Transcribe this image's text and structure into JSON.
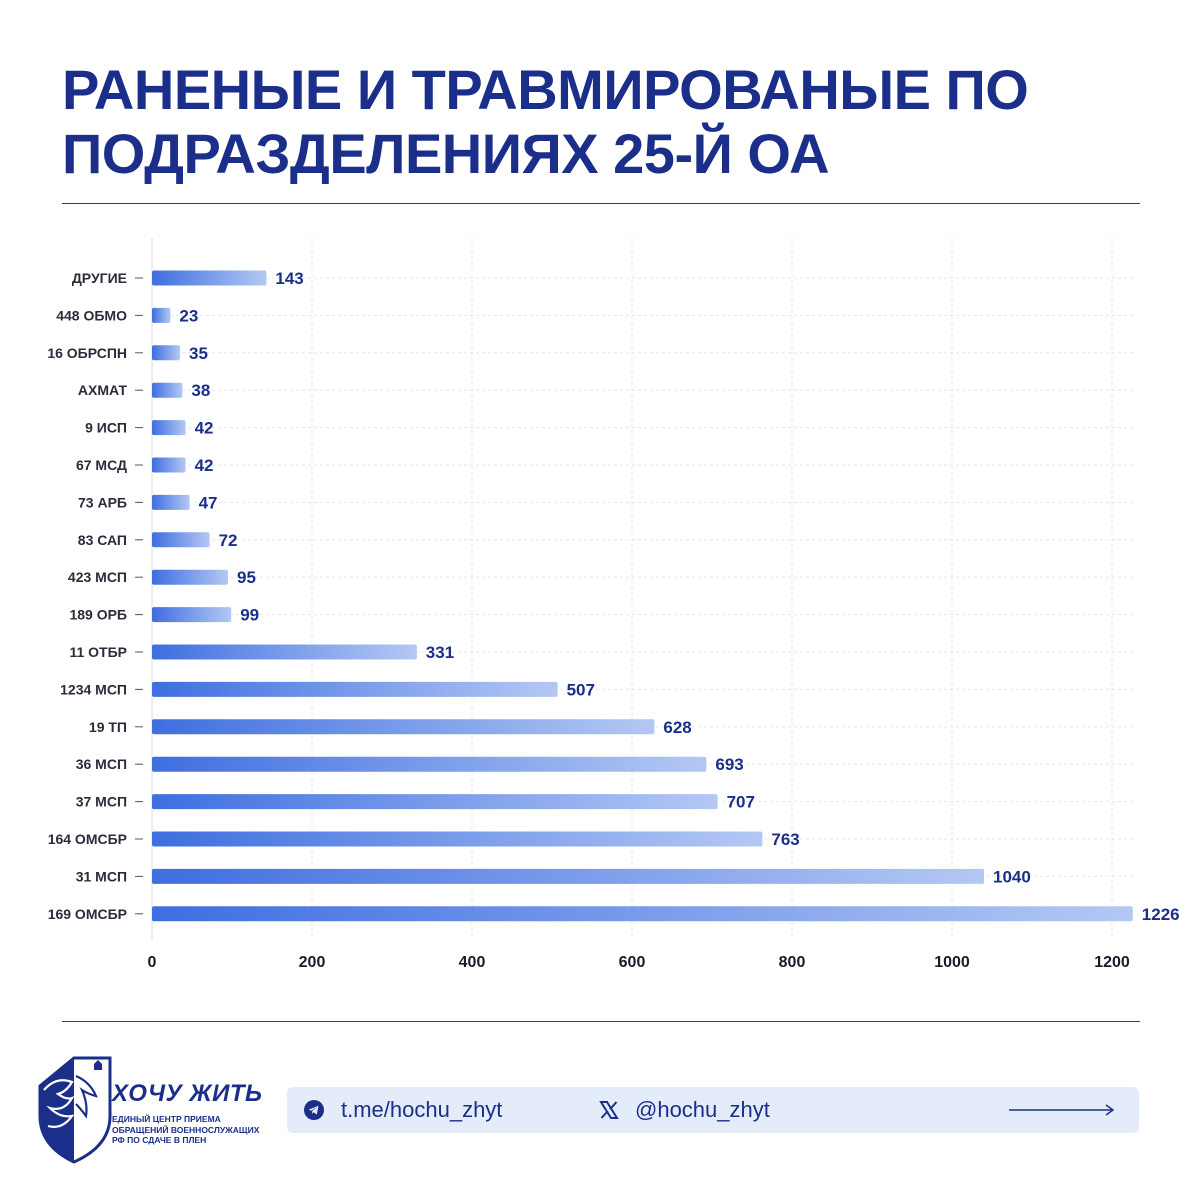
{
  "title": {
    "line1": "РАНЕНЫЕ И ТРАВМИРОВАНЫЕ ПО",
    "line2": "ПОДРАЗДЕЛЕНИЯХ 25-Й ОА"
  },
  "chart_data": {
    "type": "bar",
    "orientation": "horizontal",
    "title": "РАНЕНЫЕ И ТРАВМИРОВАНЫЕ ПО ПОДРАЗДЕЛЕНИЯХ 25-Й ОА",
    "xlabel": "",
    "ylabel": "",
    "categories": [
      "ДРУГИЕ",
      "448 ОБМО",
      "16 ОБРСПН",
      "АХМАТ",
      "9 ИСП",
      "67 МСД",
      "73 АРБ",
      "83 САП",
      "423 МСП",
      "189 ОРБ",
      "11 ОТБР",
      "1234 МСП",
      "19 ТП",
      "36 МСП",
      "37 МСП",
      "164 ОМСБР",
      "31 МСП",
      "169 ОМСБР"
    ],
    "values": [
      143,
      23,
      35,
      38,
      42,
      42,
      47,
      72,
      95,
      99,
      331,
      507,
      628,
      693,
      707,
      763,
      1040,
      1226
    ],
    "xlim": [
      0,
      1230
    ],
    "xticks": [
      "0",
      "200",
      "400",
      "600",
      "800",
      "1000",
      "1200"
    ],
    "grid": true,
    "data_labels": true,
    "bar_color_start": "#3e6ee0",
    "bar_color_end": "#b4c8f4"
  },
  "footer": {
    "brand_name": "ХОЧУ ЖИТЬ",
    "brand_sub": [
      "ЕДИНЫЙ ЦЕНТР ПРИЕМА",
      "ОБРАЩЕНИЙ ВОЕННОСЛУЖАЩИХ",
      "РФ ПО СДАЧЕ В ПЛЕН"
    ],
    "telegram": "t.me/hochu_zhyt",
    "x_handle": "@hochu_zhyt",
    "telegram_icon": "telegram-icon",
    "x_icon": "x-logo-icon",
    "arrow_icon": "arrow-right-icon"
  },
  "colors": {
    "title": "#1b2f8a",
    "bar_accent": "#3e6ee0",
    "contact_bg": "#e4ecfa"
  }
}
